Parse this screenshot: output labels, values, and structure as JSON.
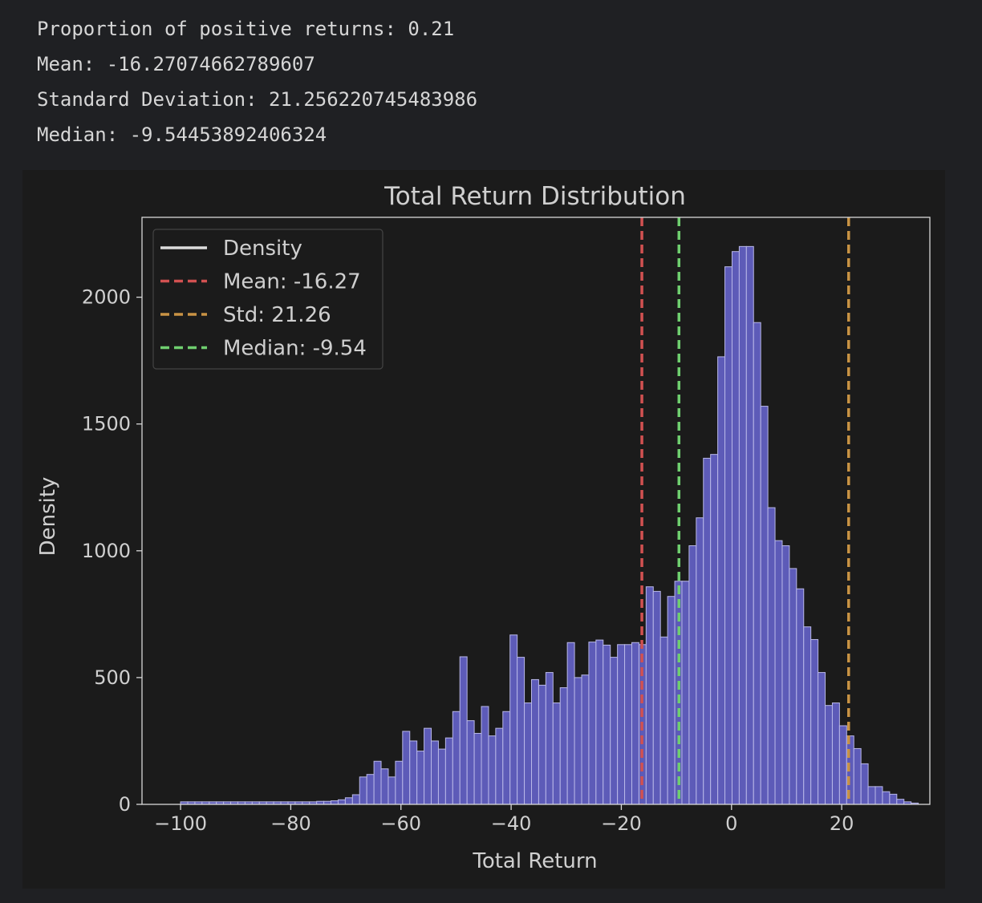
{
  "output": {
    "lines": [
      "Proportion of positive returns: 0.21",
      "Mean: -16.27074662789607",
      "Standard Deviation: 21.256220745483986",
      "Median: -9.54453892406324"
    ]
  },
  "chart_data": {
    "type": "bar",
    "title": "Total Return Distribution",
    "xlabel": "Total Return",
    "ylabel": "Density",
    "xlim": [
      -107,
      36
    ],
    "ylim": [
      0,
      2315
    ],
    "xticks": [
      -100,
      -80,
      -60,
      -40,
      -20,
      0,
      20
    ],
    "xtick_labels": [
      "−100",
      "−80",
      "−60",
      "−40",
      "−20",
      "0",
      "20"
    ],
    "yticks": [
      0,
      500,
      1000,
      1500,
      2000
    ],
    "ytick_labels": [
      "0",
      "500",
      "1000",
      "1500",
      "2000"
    ],
    "grid": false,
    "legend_position": "top-left",
    "bin_start": -100.0,
    "bin_width": 1.3,
    "values": [
      10,
      10,
      10,
      10,
      10,
      10,
      10,
      10,
      10,
      10,
      10,
      10,
      10,
      10,
      10,
      10,
      10,
      10,
      10,
      12,
      12,
      14,
      18,
      26,
      38,
      108,
      118,
      170,
      140,
      108,
      170,
      288,
      250,
      210,
      300,
      250,
      218,
      262,
      366,
      582,
      330,
      280,
      386,
      270,
      300,
      366,
      668,
      580,
      400,
      492,
      470,
      520,
      400,
      460,
      638,
      500,
      510,
      640,
      648,
      628,
      580,
      630,
      630,
      638,
      630,
      858,
      840,
      660,
      820,
      880,
      880,
      1020,
      1130,
      1365,
      1380,
      1765,
      2120,
      2180,
      2200,
      2200,
      1900,
      1570,
      1170,
      1040,
      1020,
      930,
      850,
      700,
      650,
      520,
      390,
      400,
      310,
      270,
      220,
      160,
      70,
      70,
      50,
      40,
      20,
      10,
      5
    ],
    "series": [
      {
        "name": "Density",
        "color": "#dcdcdc",
        "values": []
      },
      {
        "name": "Mean: -16.27",
        "color": "#d15151",
        "x": -16.27
      },
      {
        "name": "Std: 21.26",
        "color": "#c99344",
        "x": 21.26
      },
      {
        "name": "Median: -9.54",
        "color": "#6fcf6f",
        "x": -9.54
      }
    ],
    "colors": {
      "bar_fill": "#5d5bb8",
      "bar_edge": "#b9b8e8",
      "axes": "#d8d8d8",
      "text": "#cfcfcf"
    }
  }
}
